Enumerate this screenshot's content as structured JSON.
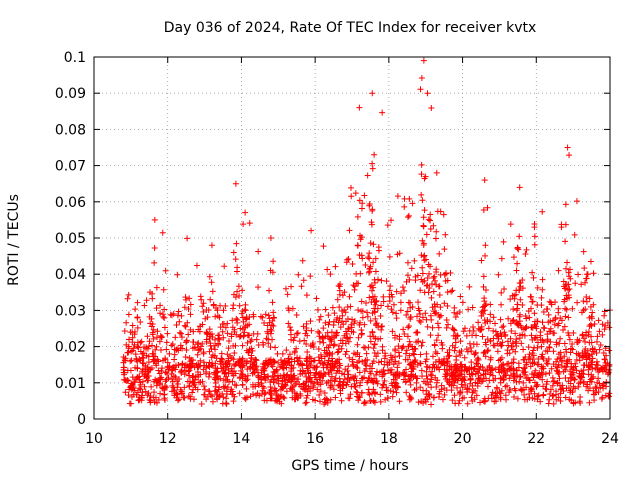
{
  "chart_data": {
    "type": "scatter",
    "title": "Day 036 of 2024, Rate Of TEC Index for receiver kvtx",
    "xlabel": "GPS time / hours",
    "ylabel": "ROTI / TECUs",
    "xlim": [
      10,
      24
    ],
    "ylim": [
      0,
      0.1
    ],
    "x_ticks": [
      10,
      12,
      14,
      16,
      18,
      20,
      22,
      24
    ],
    "x_tick_labels": [
      "10",
      "12",
      "14",
      "16",
      "18",
      "20",
      "22",
      "24"
    ],
    "y_ticks": [
      0,
      0.01,
      0.02,
      0.03,
      0.04,
      0.05,
      0.06,
      0.07,
      0.08,
      0.09,
      0.1
    ],
    "y_tick_labels": [
      "0",
      "0.01",
      "0.02",
      "0.03",
      "0.04",
      "0.05",
      "0.06",
      "0.07",
      "0.08",
      "0.09",
      "0.1"
    ],
    "grid": true,
    "marker": "+",
    "color": "#ff0000",
    "series": [
      {
        "name": "ROTI",
        "data_start_hour": 10.8,
        "data_end_hour": 24.0,
        "peaks": [
          {
            "x": 11.65,
            "y": 0.055
          },
          {
            "x": 13.2,
            "y": 0.048
          },
          {
            "x": 13.85,
            "y": 0.065
          },
          {
            "x": 14.1,
            "y": 0.057
          },
          {
            "x": 14.8,
            "y": 0.05
          },
          {
            "x": 17.2,
            "y": 0.086
          },
          {
            "x": 17.55,
            "y": 0.09
          },
          {
            "x": 17.6,
            "y": 0.073
          },
          {
            "x": 18.95,
            "y": 0.099
          },
          {
            "x": 19.05,
            "y": 0.09
          },
          {
            "x": 19.3,
            "y": 0.068
          },
          {
            "x": 20.6,
            "y": 0.066
          },
          {
            "x": 21.55,
            "y": 0.064
          },
          {
            "x": 21.95,
            "y": 0.053
          },
          {
            "x": 22.85,
            "y": 0.075
          },
          {
            "x": 23.4,
            "y": 0.04
          }
        ]
      }
    ]
  }
}
